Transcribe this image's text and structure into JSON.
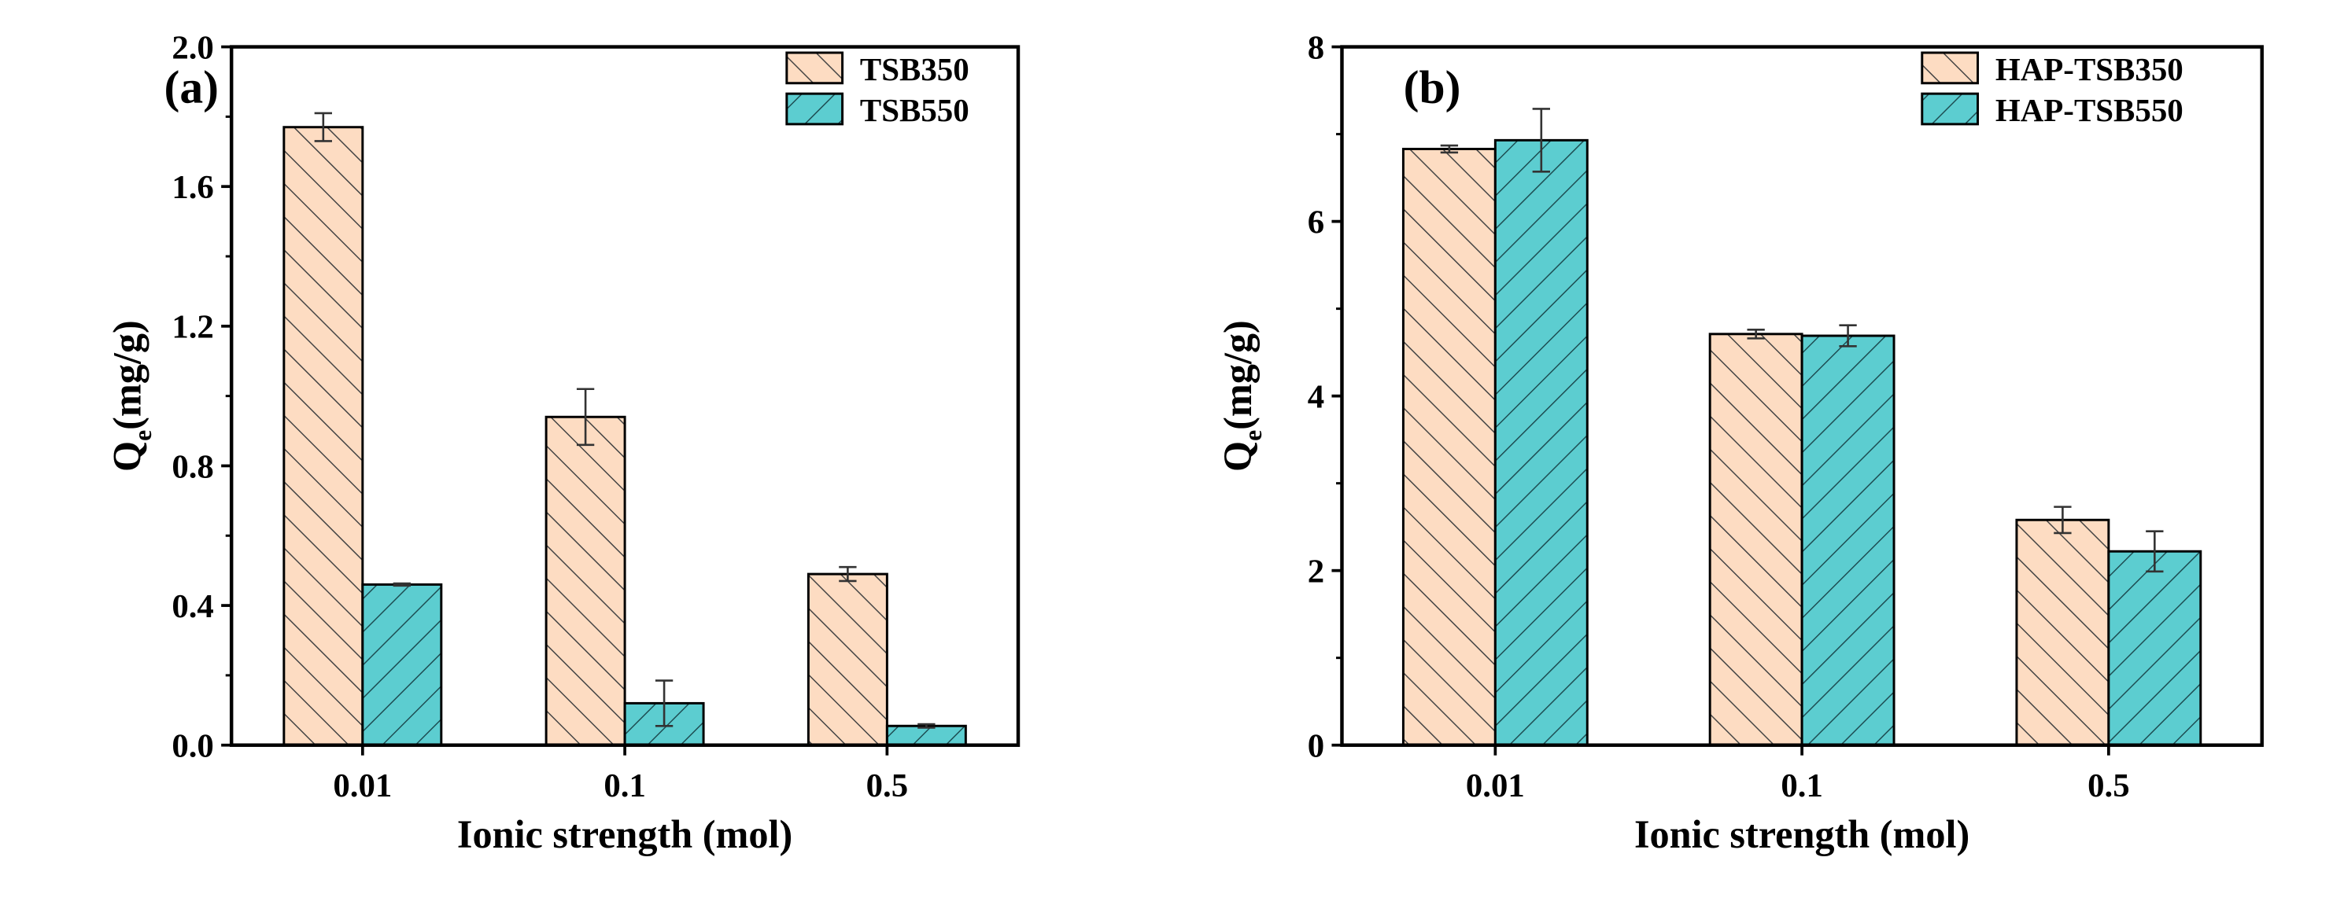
{
  "colors": {
    "series1_fill": "#fddcc2",
    "series1_hatch": "#444444",
    "series2_fill": "#5ccdd0",
    "series2_hatch": "#1d4d52",
    "axis": "#000000"
  },
  "chart_data": [
    {
      "type": "bar",
      "panel_label": "(a)",
      "categories": [
        "0.01",
        "0.1",
        "0.5"
      ],
      "xlabel": "Ionic strength (mol)",
      "ylabel_main": "Q",
      "ylabel_sub": "e",
      "ylabel_unit": "(mg/g)",
      "ylim": [
        0,
        2.0
      ],
      "yticks": [
        "0.0",
        "0.4",
        "0.8",
        "1.2",
        "1.6",
        "2.0"
      ],
      "yticks_values": [
        0,
        0.4,
        0.8,
        1.2,
        1.6,
        2.0
      ],
      "legend_position": "top-right",
      "grid": false,
      "series": [
        {
          "name": "TSB350",
          "values": [
            1.77,
            0.94,
            0.49
          ],
          "errors": [
            0.04,
            0.08,
            0.02
          ]
        },
        {
          "name": "TSB550",
          "values": [
            0.46,
            0.12,
            0.055
          ],
          "errors": [
            0.003,
            0.065,
            0.005
          ]
        }
      ]
    },
    {
      "type": "bar",
      "panel_label": "(b)",
      "categories": [
        "0.01",
        "0.1",
        "0.5"
      ],
      "xlabel": "Ionic strength (mol)",
      "ylabel_main": "Q",
      "ylabel_sub": "e",
      "ylabel_unit": "(mg/g)",
      "ylim": [
        0,
        8
      ],
      "yticks": [
        "0",
        "2",
        "4",
        "6",
        "8"
      ],
      "yticks_values": [
        0,
        2,
        4,
        6,
        8
      ],
      "legend_position": "top-right",
      "grid": false,
      "series": [
        {
          "name": "HAP-TSB350",
          "values": [
            6.83,
            4.71,
            2.58
          ],
          "errors": [
            0.04,
            0.05,
            0.15
          ]
        },
        {
          "name": "HAP-TSB550",
          "values": [
            6.93,
            4.69,
            2.22
          ],
          "errors": [
            0.36,
            0.12,
            0.23
          ]
        }
      ]
    }
  ]
}
